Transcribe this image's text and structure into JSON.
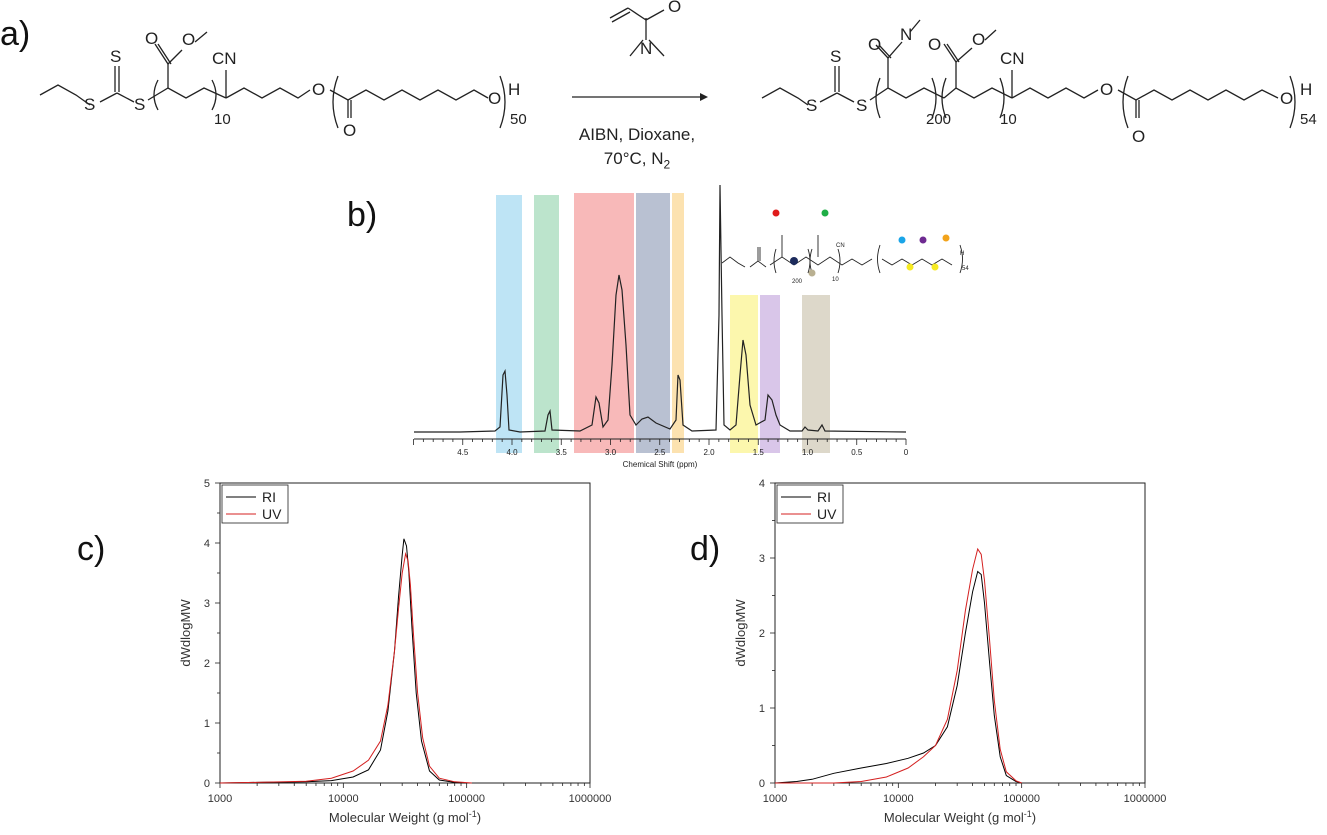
{
  "panels": {
    "a": "a)",
    "b": "b)",
    "c": "c)",
    "d": "d)"
  },
  "scheme": {
    "conditions_line1": "AIBN, Dioxane,",
    "conditions_line2": "70°C, N",
    "conditions_sub": "2",
    "reactant_sub_10": "10",
    "reactant_sub_50": "50",
    "product_sub_200": "200",
    "product_sub_10": "10",
    "product_sub_54": "54",
    "atoms": {
      "S": "S",
      "O": "O",
      "N": "N",
      "CN": "CN",
      "H": "H"
    }
  },
  "nmr": {
    "xlabel": "Chemical Shift (ppm)",
    "ticks": [
      "4.5",
      "4.0",
      "3.5",
      "3.0",
      "2.5",
      "2.0",
      "1.5",
      "1.0",
      "0.5",
      "0"
    ],
    "mini_labels": {
      "sub200": "200",
      "sub10": "10",
      "sub54": "54",
      "cn": "CN",
      "h": "H"
    }
  },
  "chart_data": [
    {
      "type": "line",
      "panel": "c",
      "xscale": "log",
      "xlim": [
        1000,
        1000000
      ],
      "ylim": [
        0,
        5
      ],
      "xlabel": "Molecular Weight (g mol",
      "xlabel_sup": "-1",
      "xlabel_end": ")",
      "ylabel": "dWdlogMW",
      "xticks": [
        "1000",
        "10000",
        "100000",
        "1000000"
      ],
      "yticks": [
        "0",
        "1",
        "2",
        "3",
        "4",
        "5"
      ],
      "legend_position": "top-left",
      "series": [
        {
          "name": "RI",
          "color": "#000000",
          "points": [
            [
              1000,
              0
            ],
            [
              2000,
              0.01
            ],
            [
              5000,
              0.02
            ],
            [
              8000,
              0.04
            ],
            [
              12000,
              0.1
            ],
            [
              16000,
              0.22
            ],
            [
              20000,
              0.55
            ],
            [
              23000,
              1.2
            ],
            [
              26000,
              2.2
            ],
            [
              28000,
              3.1
            ],
            [
              30000,
              3.8
            ],
            [
              31000,
              4.07
            ],
            [
              32500,
              3.95
            ],
            [
              34000,
              3.5
            ],
            [
              36000,
              2.6
            ],
            [
              39000,
              1.5
            ],
            [
              43000,
              0.7
            ],
            [
              50000,
              0.2
            ],
            [
              60000,
              0.05
            ],
            [
              80000,
              0.01
            ],
            [
              100000,
              0
            ]
          ]
        },
        {
          "name": "UV",
          "color": "#d42020",
          "points": [
            [
              1000,
              0
            ],
            [
              2000,
              0.01
            ],
            [
              5000,
              0.03
            ],
            [
              8000,
              0.08
            ],
            [
              12000,
              0.2
            ],
            [
              16000,
              0.38
            ],
            [
              20000,
              0.7
            ],
            [
              23000,
              1.3
            ],
            [
              26000,
              2.2
            ],
            [
              28000,
              2.9
            ],
            [
              30000,
              3.5
            ],
            [
              32000,
              3.82
            ],
            [
              33500,
              3.7
            ],
            [
              35000,
              3.3
            ],
            [
              37000,
              2.5
            ],
            [
              40000,
              1.5
            ],
            [
              44000,
              0.75
            ],
            [
              50000,
              0.28
            ],
            [
              60000,
              0.08
            ],
            [
              80000,
              0.02
            ],
            [
              110000,
              0
            ]
          ]
        }
      ]
    },
    {
      "type": "line",
      "panel": "d",
      "xscale": "log",
      "xlim": [
        1000,
        1000000
      ],
      "ylim": [
        0,
        4
      ],
      "xlabel": "Molecular Weight (g mol",
      "xlabel_sup": "-1",
      "xlabel_end": ")",
      "ylabel": "dWdlogMW",
      "xticks": [
        "1000",
        "10000",
        "100000",
        "1000000"
      ],
      "yticks": [
        "0",
        "1",
        "2",
        "3",
        "4"
      ],
      "legend_position": "top-left",
      "series": [
        {
          "name": "RI",
          "color": "#000000",
          "points": [
            [
              1000,
              0
            ],
            [
              1500,
              0.02
            ],
            [
              2000,
              0.05
            ],
            [
              3000,
              0.13
            ],
            [
              5000,
              0.2
            ],
            [
              8000,
              0.26
            ],
            [
              12000,
              0.33
            ],
            [
              16000,
              0.4
            ],
            [
              20000,
              0.5
            ],
            [
              25000,
              0.75
            ],
            [
              30000,
              1.3
            ],
            [
              35000,
              2.0
            ],
            [
              40000,
              2.55
            ],
            [
              44000,
              2.82
            ],
            [
              47000,
              2.78
            ],
            [
              50000,
              2.4
            ],
            [
              55000,
              1.6
            ],
            [
              60000,
              0.9
            ],
            [
              67000,
              0.35
            ],
            [
              75000,
              0.1
            ],
            [
              90000,
              0.02
            ],
            [
              100000,
              0
            ]
          ]
        },
        {
          "name": "UV",
          "color": "#d42020",
          "points": [
            [
              1000,
              0
            ],
            [
              3000,
              0.0
            ],
            [
              5000,
              0.02
            ],
            [
              8000,
              0.08
            ],
            [
              12000,
              0.2
            ],
            [
              16000,
              0.35
            ],
            [
              20000,
              0.5
            ],
            [
              25000,
              0.85
            ],
            [
              30000,
              1.5
            ],
            [
              35000,
              2.3
            ],
            [
              40000,
              2.85
            ],
            [
              44000,
              3.12
            ],
            [
              47000,
              3.05
            ],
            [
              50000,
              2.7
            ],
            [
              55000,
              1.9
            ],
            [
              60000,
              1.1
            ],
            [
              67000,
              0.45
            ],
            [
              75000,
              0.15
            ],
            [
              90000,
              0.03
            ],
            [
              100000,
              0
            ]
          ]
        }
      ]
    }
  ]
}
